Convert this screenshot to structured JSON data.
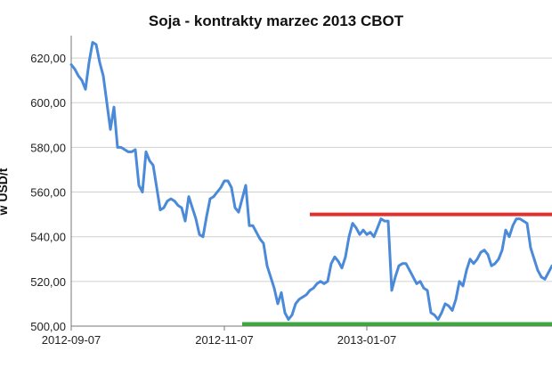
{
  "chart_data": {
    "type": "line",
    "title": "Soja - kontrakty marzec 2013 CBOT",
    "ylabel": "w USD/t",
    "xlabel": "",
    "ylim": [
      500,
      630
    ],
    "yticks": [
      "620,00",
      "600,00",
      "580,00",
      "560,00",
      "540,00",
      "520,00",
      "500,00"
    ],
    "ytick_values": [
      620,
      600,
      580,
      560,
      540,
      520,
      500
    ],
    "xticks": [
      {
        "label": "2012-09-07",
        "index": 0
      },
      {
        "label": "2012-11-07",
        "index": 43
      },
      {
        "label": "2013-01-07",
        "index": 83
      }
    ],
    "grid": true,
    "legend": "none",
    "series_color": "#4a8ad8",
    "series": [
      {
        "values": [
          617,
          615,
          612,
          610,
          606,
          618,
          627,
          626,
          618,
          612,
          600,
          588,
          598,
          580,
          580,
          579,
          578,
          578,
          579,
          563,
          560,
          578,
          574,
          572,
          562,
          552,
          553,
          556,
          557,
          556,
          554,
          553,
          547,
          558,
          553,
          548,
          541,
          540,
          549,
          557,
          558,
          560,
          562,
          565,
          565,
          562,
          553,
          551,
          557,
          563,
          545,
          545,
          542,
          539,
          537,
          527,
          522,
          517,
          510,
          515,
          506,
          503,
          505,
          510,
          512,
          513,
          514,
          516,
          517,
          519,
          520,
          519,
          520,
          528,
          531,
          529,
          526,
          531,
          540,
          546,
          544,
          541,
          543,
          541,
          542,
          540,
          544,
          548,
          547,
          547,
          516,
          522,
          527,
          528,
          528,
          525,
          522,
          519,
          520,
          517,
          516,
          506,
          505,
          503,
          506,
          510,
          509,
          507,
          512,
          520,
          518,
          525,
          530,
          528,
          530,
          533,
          534,
          532,
          527,
          528,
          530,
          534,
          543,
          540,
          545,
          548,
          548,
          547,
          546,
          535,
          530,
          525,
          522,
          521,
          524,
          527
        ]
      }
    ],
    "reference_lines": [
      {
        "value": 550,
        "from_index": 67,
        "to_index": 154,
        "color": "#e03030"
      },
      {
        "value": 501,
        "from_index": 48,
        "to_index": 154,
        "color": "#3aaa3a"
      }
    ]
  }
}
